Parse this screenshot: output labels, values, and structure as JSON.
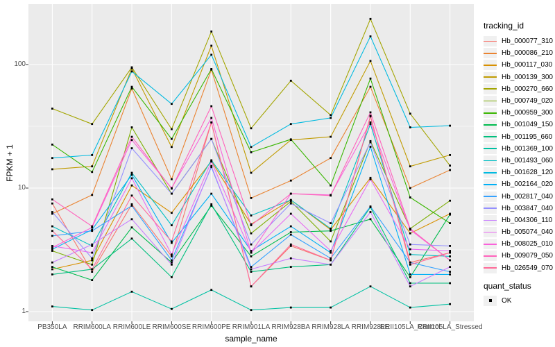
{
  "figure": {
    "background": "#FFFFFF",
    "panel_background": "#EBEBEB",
    "gridline_color": "#FFFFFF",
    "tick_color": "#333333",
    "tick_label_color": "#4D4D4D",
    "point_color": "#000000"
  },
  "chart_data": {
    "type": "line",
    "title": "",
    "xlabel": "sample_name",
    "ylabel": "FPKM + 1",
    "y_scale": "log10",
    "y_ticks": [
      1,
      10,
      100
    ],
    "y_tick_labels": [
      "1",
      "10",
      "100"
    ],
    "y_minor_breaks": [
      3.162,
      31.62
    ],
    "ylim": [
      0.85,
      300
    ],
    "grid": true,
    "legend_position": "right",
    "legend_title": "tracking_id",
    "point_legend": {
      "title": "quant_status",
      "label": "OK"
    },
    "x_categories": [
      "PB350LA",
      "RRIM600LA",
      "RRIM600LE",
      "RRIM600SE",
      "RRIM600PE",
      "RRIM901LA",
      "RRIM928BA",
      "RRIM928LA",
      "RRIM928LE",
      "RRII105LA_Control",
      "RRII105LA_Stressed"
    ],
    "series": [
      {
        "name": "Hb_000077_310",
        "color": "#F8766D",
        "values": [
          7.5,
          2.1,
          7.4,
          2.8,
          34,
          1.6,
          3.4,
          2.6,
          38,
          2.5,
          3.0
        ]
      },
      {
        "name": "Hb_000086_210",
        "color": "#EA8331",
        "values": [
          6.2,
          8.8,
          64,
          11.8,
          91,
          8.3,
          11.5,
          17.5,
          66,
          10,
          14
        ]
      },
      {
        "name": "Hb_000117_030",
        "color": "#D89000",
        "values": [
          2.2,
          2.6,
          10.5,
          6.3,
          16.5,
          5.1,
          8.0,
          4.6,
          12.1,
          4.3,
          6.2
        ]
      },
      {
        "name": "Hb_000139_300",
        "color": "#C09B00",
        "values": [
          14.2,
          15,
          93,
          21.5,
          142,
          13.3,
          24.5,
          26,
          107,
          15,
          18.5
        ]
      },
      {
        "name": "Hb_000270_660",
        "color": "#A3A500",
        "values": [
          44,
          33,
          95,
          30,
          185,
          30.5,
          74,
          39,
          234,
          40,
          15.2
        ]
      },
      {
        "name": "Hb_000749_020",
        "color": "#7CAE00",
        "values": [
          3.1,
          2.4,
          31,
          9.0,
          25,
          4.3,
          7.8,
          3.7,
          24,
          4.7,
          7.9
        ]
      },
      {
        "name": "Hb_000959_300",
        "color": "#39B600",
        "values": [
          22.5,
          13.5,
          66,
          25,
          92,
          19.5,
          24.8,
          10.5,
          77,
          8.4,
          5.2
        ]
      },
      {
        "name": "Hb_001049_150",
        "color": "#00BB4E",
        "values": [
          2.3,
          1.8,
          4.8,
          2.5,
          7.2,
          2.8,
          4.4,
          4.5,
          5.6,
          1.9,
          6.1
        ]
      },
      {
        "name": "Hb_001195_660",
        "color": "#00BF7D",
        "values": [
          2.0,
          2.2,
          3.9,
          1.9,
          7.4,
          2.1,
          2.3,
          2.4,
          7.0,
          1.7,
          1.7
        ]
      },
      {
        "name": "Hb_001369_100",
        "color": "#00C1A3",
        "values": [
          1.1,
          1.03,
          1.45,
          1.05,
          1.5,
          1.03,
          1.08,
          1.08,
          1.6,
          1.08,
          1.15
        ]
      },
      {
        "name": "Hb_001493_060",
        "color": "#00BFC4",
        "values": [
          4.9,
          3.4,
          13.3,
          5.0,
          16.8,
          6.0,
          8.0,
          4.7,
          33,
          2.9,
          2.8
        ]
      },
      {
        "name": "Hb_001628_120",
        "color": "#00BAE0",
        "values": [
          17.5,
          18.5,
          88,
          48,
          120,
          21.5,
          33,
          37,
          169,
          31,
          32
        ]
      },
      {
        "name": "Hb_002164_020",
        "color": "#00B0F6",
        "values": [
          3.2,
          4.6,
          12.8,
          3.6,
          9.0,
          3.1,
          4.9,
          3.0,
          21.6,
          2.0,
          2.0
        ]
      },
      {
        "name": "Hb_002817_040",
        "color": "#35A2FF",
        "values": [
          4.1,
          4.5,
          7.2,
          2.6,
          14.8,
          2.3,
          4.2,
          2.7,
          7.1,
          2.5,
          2.1
        ]
      },
      {
        "name": "Hb_003847_040",
        "color": "#9590FF",
        "values": [
          6.4,
          2.7,
          21,
          9.0,
          25,
          3.5,
          7.5,
          5.2,
          23.5,
          3.5,
          3.4
        ]
      },
      {
        "name": "Hb_004306_110",
        "color": "#C77CFF",
        "values": [
          2.5,
          3.5,
          5.6,
          2.4,
          15.1,
          2.2,
          2.7,
          2.4,
          6.4,
          1.6,
          2.3
        ]
      },
      {
        "name": "Hb_005074_040",
        "color": "#E76BF3",
        "values": [
          3.4,
          3.0,
          12.0,
          2.9,
          16.4,
          3.0,
          6.2,
          3.1,
          11.8,
          3.2,
          3.1
        ]
      },
      {
        "name": "Hb_008025_010",
        "color": "#FA62DB",
        "values": [
          3.3,
          4.8,
          24.5,
          10.0,
          37,
          3.0,
          9.0,
          8.8,
          34,
          4.6,
          2.6
        ]
      },
      {
        "name": "Hb_009079_050",
        "color": "#FF62BC",
        "values": [
          8.1,
          4.9,
          26,
          9.9,
          46,
          5.0,
          9.0,
          8.7,
          41,
          4.7,
          2.6
        ]
      },
      {
        "name": "Hb_026549_070",
        "color": "#FF6A98",
        "values": [
          4.5,
          2.2,
          8.7,
          3.7,
          34,
          1.6,
          3.5,
          2.6,
          38.5,
          2.4,
          3.0
        ]
      }
    ]
  }
}
